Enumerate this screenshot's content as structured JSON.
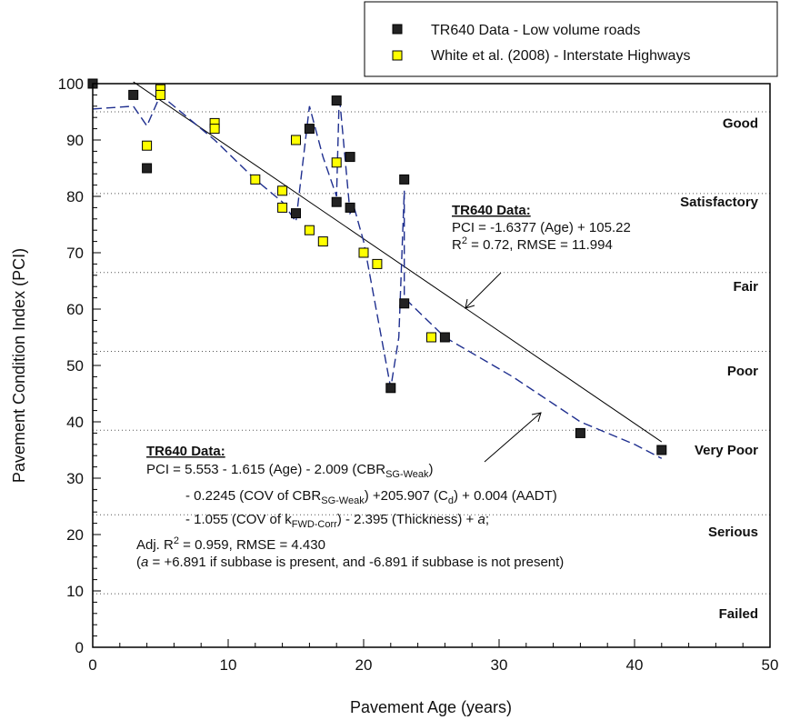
{
  "chart_data": {
    "type": "scatter",
    "xlabel": "Pavement Age (years)",
    "ylabel": "Pavement Condition Index (PCI)",
    "xlim": [
      0,
      50
    ],
    "ylim": [
      0,
      100
    ],
    "x_ticks": [
      0,
      10,
      20,
      30,
      40,
      50
    ],
    "y_ticks": [
      0,
      10,
      20,
      30,
      40,
      50,
      60,
      70,
      80,
      90,
      100
    ],
    "legend_position": "top-right",
    "series": [
      {
        "name": "TR640 Data - Low volume roads",
        "marker": "square",
        "color": "#222222",
        "points": [
          [
            0,
            100
          ],
          [
            3,
            98
          ],
          [
            4,
            85
          ],
          [
            15,
            77
          ],
          [
            16,
            92
          ],
          [
            18,
            97
          ],
          [
            18,
            79
          ],
          [
            19,
            87
          ],
          [
            19,
            78
          ],
          [
            22,
            46
          ],
          [
            23,
            83
          ],
          [
            23,
            61
          ],
          [
            26,
            55
          ],
          [
            36,
            38
          ],
          [
            42,
            35
          ]
        ]
      },
      {
        "name": "White et al. (2008) - Interstate Highways",
        "marker": "square",
        "color": "#ffff00",
        "points": [
          [
            4,
            89
          ],
          [
            5,
            99
          ],
          [
            5,
            98
          ],
          [
            9,
            93
          ],
          [
            9,
            92
          ],
          [
            12,
            83
          ],
          [
            14,
            81
          ],
          [
            14,
            78
          ],
          [
            15,
            90
          ],
          [
            16,
            74
          ],
          [
            17,
            72
          ],
          [
            18,
            86
          ],
          [
            20,
            70
          ],
          [
            21,
            68
          ],
          [
            25,
            55
          ]
        ]
      }
    ],
    "lines": [
      {
        "style": "solid",
        "color": "#000000",
        "points": [
          [
            3,
            100.31
          ],
          [
            42,
            36.44
          ]
        ]
      },
      {
        "style": "dashed",
        "color": "#1f2f8f",
        "points": [
          [
            0,
            95.5
          ],
          [
            3,
            96
          ],
          [
            4,
            92.5
          ],
          [
            5,
            98
          ],
          [
            9,
            90
          ],
          [
            12,
            83
          ],
          [
            14,
            79
          ],
          [
            15,
            75.5
          ],
          [
            16,
            96
          ],
          [
            17,
            87
          ],
          [
            18,
            80
          ],
          [
            18.2,
            98
          ],
          [
            19,
            77
          ],
          [
            19.3,
            78
          ],
          [
            20,
            72
          ],
          [
            22,
            46
          ],
          [
            22.6,
            55
          ],
          [
            23,
            81
          ],
          [
            23,
            62
          ],
          [
            26,
            55
          ],
          [
            31,
            48
          ],
          [
            36,
            40
          ],
          [
            40,
            36
          ],
          [
            42,
            33.5
          ]
        ]
      }
    ],
    "bands": [
      {
        "label": "Good",
        "y": 93,
        "lower": 95
      },
      {
        "label": "Satisfactory",
        "y": 79,
        "lower": 80.5
      },
      {
        "label": "Fair",
        "y": 64,
        "lower": 66.5
      },
      {
        "label": "Poor",
        "y": 49,
        "lower": 52.5
      },
      {
        "label": "Very Poor",
        "y": 35,
        "lower": 38.5
      },
      {
        "label": "Serious",
        "y": 20.5,
        "lower": 23.5
      },
      {
        "label": "Failed",
        "y": 6,
        "lower": 9.5
      }
    ],
    "annotations": {
      "linear": {
        "heading": "TR640 Data:",
        "line1": "PCI = -1.6377 (Age) + 105.22",
        "line2_r": "R",
        "line2_sup": "2",
        "line2_rest": " = 0.72, RMSE = 11.994"
      },
      "model": {
        "heading": "TR640 Data:",
        "l1_a": "PCI = 5.553 - 1.615 (Age) - 2.009 (CBR",
        "l1_sub": "SG-Weak",
        "l1_b": ")",
        "l2_a": "- 0.2245 (COV of CBR",
        "l2_sub": "SG-Weak",
        "l2_b": ") +205.907 (C",
        "l2_sub2": "d",
        "l2_c": ") + 0.004 (AADT)",
        "l3_a": "- 1.055 (COV of k",
        "l3_sub": "FWD-Corr",
        "l3_b": ") - 2.395 (Thickness) + ",
        "l3_italic": "a",
        "l3_c": ";",
        "l4_a": "Adj. R",
        "l4_sup": "2",
        "l4_b": " = 0.959, RMSE = 4.430",
        "l5_a": "(",
        "l5_italic": "a",
        "l5_b": " = +6.891 if subbase is present, and -6.891 if subbase is not present)"
      }
    }
  }
}
